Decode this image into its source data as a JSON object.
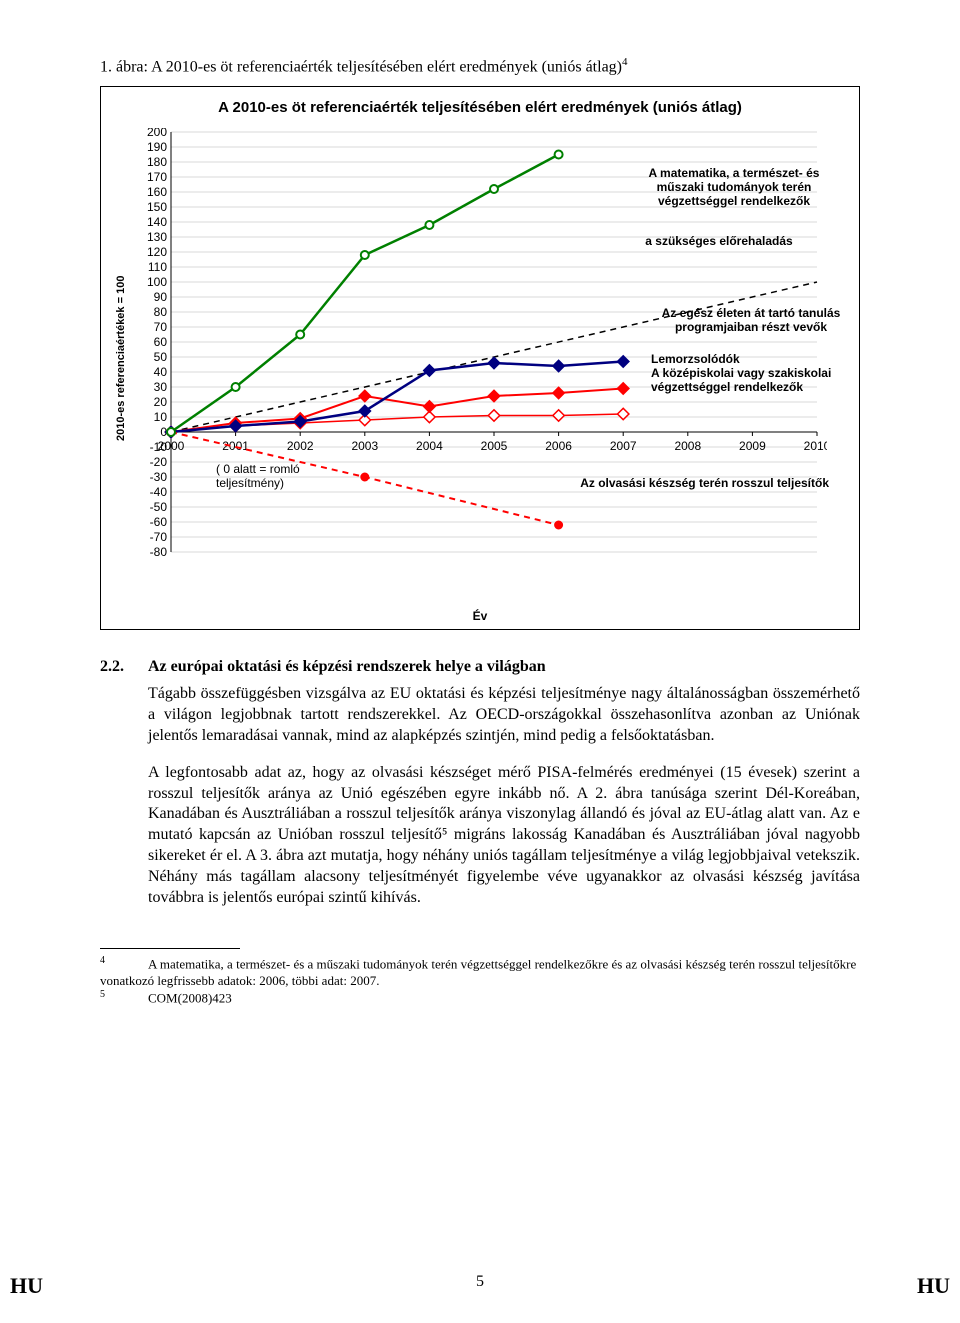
{
  "caption": "1. ábra: A 2010-es öt referenciaérték teljesítésében elért eredmények (uniós átlag)",
  "caption_sup": "4",
  "chart": {
    "type": "line",
    "title": "A 2010-es öt referenciaérték teljesítésében elért eredmények (uniós átlag)",
    "y_axis_label": "2010-es referenciaértékek = 100",
    "x_axis_label": "Év",
    "background_color": "#ffffff",
    "grid_color": "#d9d9d9",
    "axis_color": "#000000",
    "ylim": [
      -80,
      200
    ],
    "ytick_step": 10,
    "xlim": [
      2000,
      2010
    ],
    "years": [
      2000,
      2001,
      2002,
      2003,
      2004,
      2005,
      2006,
      2007,
      2008,
      2009,
      2010
    ],
    "label_fontsize": 11,
    "tick_fontsize": 12,
    "series": {
      "mst": {
        "name": "A matematika, a természet- és műszaki tudományok terén végzettséggel rendelkezők",
        "color": "#008000",
        "line_width": 2.5,
        "marker": "circle-open",
        "marker_size": 8,
        "years": [
          2000,
          2001,
          2002,
          2003,
          2004,
          2005,
          2006
        ],
        "values": [
          0,
          30,
          65,
          118,
          138,
          162,
          185
        ]
      },
      "lifelong": {
        "name": "Az egész életen át tartó tanulás programjaiban részt vevők",
        "color": "#000080",
        "line_width": 2.5,
        "line_style": "solid",
        "marker": "diamond-filled",
        "marker_size": 8,
        "years": [
          2000,
          2001,
          2002,
          2003,
          2004,
          2005,
          2006,
          2007
        ],
        "values": [
          0,
          4,
          7,
          14,
          41,
          46,
          44,
          47
        ]
      },
      "dropout": {
        "name": "Lemorzsolódók",
        "color": "#ff0000",
        "line_width": 2,
        "marker": "diamond-filled",
        "marker_size": 8,
        "years": [
          2000,
          2001,
          2002,
          2003,
          2004,
          2005,
          2006,
          2007
        ],
        "values": [
          0,
          6,
          9,
          24,
          17,
          24,
          26,
          29
        ]
      },
      "upper_sec": {
        "name": "A középiskolai vagy szakiskolai végzettséggel rendelkezők",
        "color": "#ff0000",
        "line_width": 1.5,
        "marker": "diamond-open",
        "marker_size": 8,
        "years": [
          2000,
          2001,
          2002,
          2003,
          2004,
          2005,
          2006,
          2007
        ],
        "values": [
          0,
          4,
          6,
          8,
          10,
          11,
          11,
          12
        ]
      },
      "reading": {
        "name": "Az olvasási készség terén rosszul teljesítők",
        "color": "#ff0000",
        "line_width": 2,
        "line_style": "dashed",
        "marker": "circle-filled",
        "marker_size": 8,
        "years": [
          2000,
          2003,
          2006
        ],
        "values": [
          0,
          -30,
          -62
        ]
      },
      "required": {
        "name": "a szükséges előrehaladás",
        "color": "#000000",
        "line_width": 1.5,
        "line_style": "dashed",
        "marker": "none",
        "years": [
          2000,
          2010
        ],
        "values": [
          0,
          100
        ]
      }
    },
    "note": "( 0 alatt = romló teljesítmény)",
    "annotations": {
      "mst_label": "A matematika, a természet- és műszaki tudományok terén végzettséggel rendelkezők",
      "required_label": "a szükséges előrehaladás",
      "lifelong_label": "Az egész életen át tartó tanulás programjaiban részt vevők",
      "dropout_label": "Lemorzsolódók",
      "upper_sec_label": "A középiskolai vagy szakiskolai végzettséggel rendelkezők",
      "reading_label": "Az olvasási készség terén rosszul teljesítők"
    }
  },
  "section_num": "2.2.",
  "section_title": "Az európai oktatási és képzési rendszerek helye a világban",
  "para1": "Tágabb összefüggésben vizsgálva az EU oktatási és képzési teljesítménye nagy általánosságban összemérhető a világon legjobbnak tartott rendszerekkel. Az OECD-országokkal összehasonlítva azonban az Uniónak jelentős lemaradásai vannak, mind az alapképzés szintjén, mind pedig a felsőoktatásban.",
  "para2": "A legfontosabb adat az, hogy az olvasási készséget mérő PISA-felmérés eredményei (15 évesek) szerint a rosszul teljesítők aránya az Unió egészében egyre inkább nő. A 2. ábra tanúsága szerint Dél-Koreában, Kanadában és Ausztráliában a rosszul teljesítők aránya viszonylag állandó és jóval az EU-átlag alatt van. Az e mutató kapcsán az Unióban rosszul teljesítő⁵ migráns lakosság Kanadában és Ausztráliában jóval nagyobb sikereket ér el. A 3. ábra azt mutatja, hogy néhány uniós tagállam teljesítménye a világ legjobbjaival vetekszik. Néhány más tagállam alacsony teljesítményét figyelembe véve ugyanakkor az olvasási készség javítása továbbra is jelentős európai szintű kihívás.",
  "fn4": "A matematika, a természet- és a műszaki tudományok terén végzettséggel rendelkezőkre és az olvasási készség terén rosszul teljesítőkre vonatkozó legfrissebb adatok: 2006, többi adat: 2007.",
  "fn5": "COM(2008)423",
  "page_lang": "HU",
  "page_no": "5"
}
